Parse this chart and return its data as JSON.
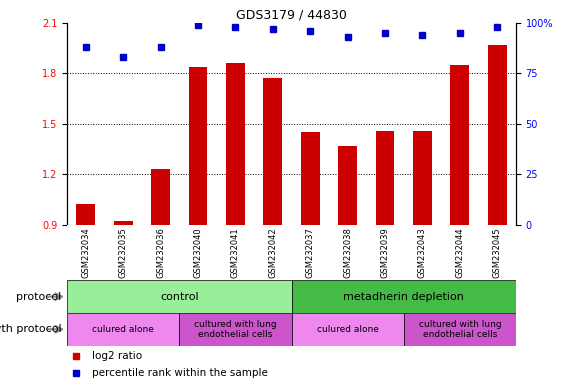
{
  "title": "GDS3179 / 44830",
  "samples": [
    "GSM232034",
    "GSM232035",
    "GSM232036",
    "GSM232040",
    "GSM232041",
    "GSM232042",
    "GSM232037",
    "GSM232038",
    "GSM232039",
    "GSM232043",
    "GSM232044",
    "GSM232045"
  ],
  "log2_ratio": [
    1.02,
    0.92,
    1.23,
    1.84,
    1.86,
    1.77,
    1.45,
    1.37,
    1.46,
    1.46,
    1.85,
    1.97
  ],
  "percentile_rank": [
    88,
    83,
    88,
    99,
    98,
    97,
    96,
    93,
    95,
    94,
    95,
    98
  ],
  "ylim_left": [
    0.9,
    2.1
  ],
  "ylim_right": [
    0,
    100
  ],
  "yticks_left": [
    0.9,
    1.2,
    1.5,
    1.8,
    2.1
  ],
  "yticks_right": [
    0,
    25,
    50,
    75,
    100
  ],
  "bar_color": "#cc0000",
  "dot_color": "#0000cc",
  "bg_color": "#ffffff",
  "xtick_bg": "#cccccc",
  "protocol_row": {
    "label": "protocol",
    "groups": [
      {
        "text": "control",
        "start": 0,
        "end": 6,
        "color": "#99ee99"
      },
      {
        "text": "metadherin depletion",
        "start": 6,
        "end": 12,
        "color": "#44bb44"
      }
    ]
  },
  "growth_protocol_row": {
    "label": "growth protocol",
    "groups": [
      {
        "text": "culured alone",
        "start": 0,
        "end": 3,
        "color": "#ee88ee"
      },
      {
        "text": "cultured with lung\nendothelial cells",
        "start": 3,
        "end": 6,
        "color": "#cc55cc"
      },
      {
        "text": "culured alone",
        "start": 6,
        "end": 9,
        "color": "#ee88ee"
      },
      {
        "text": "cultured with lung\nendothelial cells",
        "start": 9,
        "end": 12,
        "color": "#cc55cc"
      }
    ]
  },
  "legend": [
    {
      "label": "log2 ratio",
      "color": "#cc0000"
    },
    {
      "label": "percentile rank within the sample",
      "color": "#0000cc"
    }
  ]
}
